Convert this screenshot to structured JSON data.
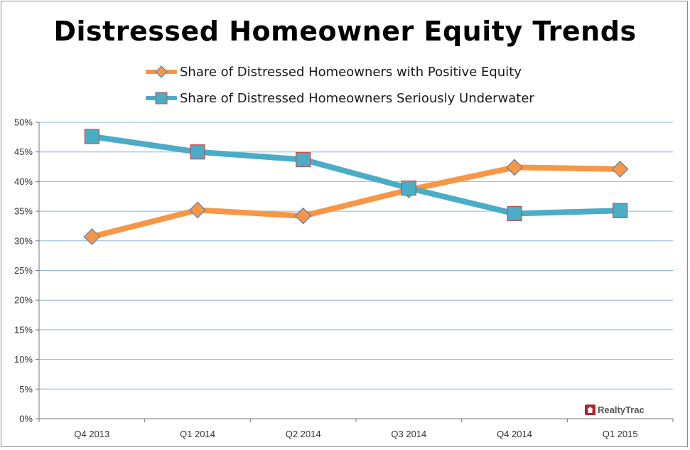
{
  "chart_data": {
    "type": "line",
    "title": "Distressed Homeowner Equity Trends",
    "categories": [
      "Q4 2013",
      "Q1 2014",
      "Q2 2014",
      "Q3 2014",
      "Q4 2014",
      "Q1 2015"
    ],
    "series": [
      {
        "name": "Share of Distressed Homeowners with Positive Equity",
        "values": [
          30.7,
          35.2,
          34.2,
          38.6,
          42.4,
          42.1
        ],
        "color": "#f79646",
        "marker": "diamond"
      },
      {
        "name": "Share of Distressed Homeowners Seriously Underwater",
        "values": [
          47.6,
          45.0,
          43.7,
          38.9,
          34.6,
          35.1
        ],
        "color": "#4bacc6",
        "marker": "square"
      }
    ],
    "ylim": [
      0,
      50
    ],
    "yticks": [
      "0%",
      "5%",
      "10%",
      "15%",
      "20%",
      "25%",
      "30%",
      "35%",
      "40%",
      "45%",
      "50%"
    ],
    "grid": true,
    "legend_position": "top"
  },
  "brand": {
    "name": "RealtyTrac"
  }
}
